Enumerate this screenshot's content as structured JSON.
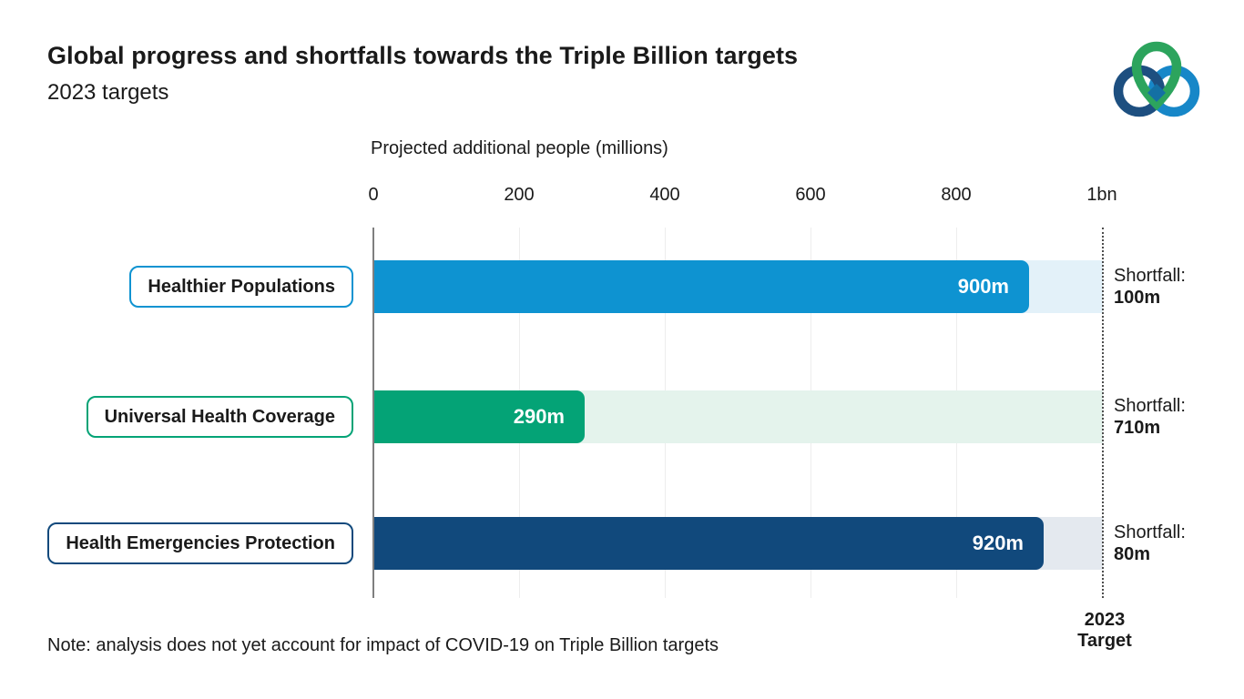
{
  "header": {
    "title": "Global progress and shortfalls towards the Triple Billion targets",
    "subtitle": "2023 targets",
    "logo": {
      "name": "triple-billion-logo",
      "colors": {
        "green": "#2CA45D",
        "dark_blue": "#1D4F80",
        "light_blue": "#1787C8",
        "knot": "#1470A4"
      }
    }
  },
  "chart_data": {
    "type": "bar",
    "orientation": "horizontal",
    "title": "Global progress and shortfalls towards the Triple Billion targets",
    "subtitle": "2023 targets",
    "xlabel": "Projected additional people (millions)",
    "xlim": [
      0,
      1000
    ],
    "x_ticks": [
      "0",
      "200",
      "400",
      "600",
      "800",
      "1bn"
    ],
    "x_tick_values": [
      0,
      200,
      400,
      600,
      800,
      1000
    ],
    "grid": true,
    "legend": false,
    "axis_color": "#7f7f7f",
    "gridline_color": "#ededed",
    "target_line": {
      "value": 1000,
      "style": "dotted",
      "label_line1": "2023",
      "label_line2": "Target"
    },
    "rows": [
      {
        "label": "Healthier Populations",
        "value": 900,
        "value_label": "900m",
        "shortfall": 100,
        "shortfall_label": "Shortfall:",
        "shortfall_value": "100m",
        "color": "#0E93D1",
        "track_color": "#E3F1F9"
      },
      {
        "label": "Universal Health Coverage",
        "value": 290,
        "value_label": "290m",
        "shortfall": 710,
        "shortfall_label": "Shortfall:",
        "shortfall_value": "710m",
        "color": "#04A376",
        "track_color": "#E4F3EC"
      },
      {
        "label": "Health Emergencies Protection",
        "value": 920,
        "value_label": "920m",
        "shortfall": 80,
        "shortfall_label": "Shortfall:",
        "shortfall_value": "80m",
        "color": "#11497C",
        "track_color": "#E4E9EF"
      }
    ],
    "note": "Note: analysis does not yet account for impact of COVID-19 on Triple Billion targets"
  }
}
